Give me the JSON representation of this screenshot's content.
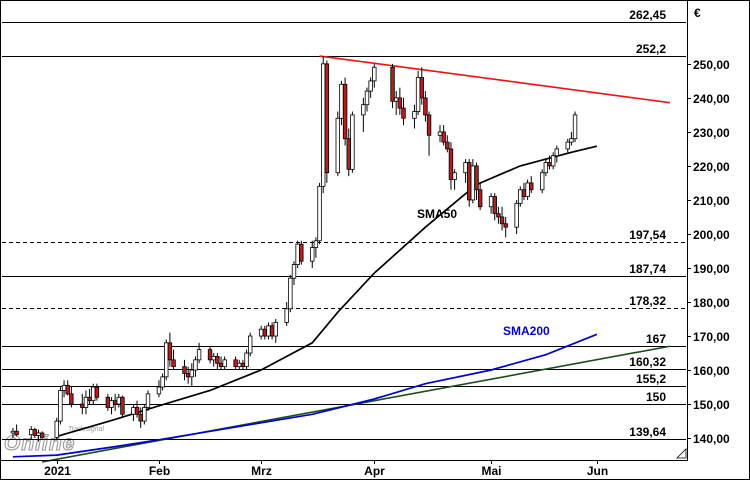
{
  "chart_data": {
    "type": "candlestick",
    "currency_label": "€",
    "watermark": {
      "brand": "Tradesignal",
      "product": "Online"
    },
    "x_axis": {
      "tick_labels": [
        "2021",
        "Feb",
        "Mrz",
        "Apr",
        "Mai",
        "Jun"
      ],
      "tick_dates": [
        "2021-01-04",
        "2021-02-01",
        "2021-03-01",
        "2021-04-01",
        "2021-05-03",
        "2021-06-01"
      ]
    },
    "y_axis": {
      "ylim": [
        133.5,
        265.5
      ],
      "tick_labels": [
        "140,00",
        "150,00",
        "160,00",
        "170,00",
        "180,00",
        "190,00",
        "200,00",
        "210,00",
        "220,00",
        "230,00",
        "240,00",
        "250,00"
      ],
      "ticks": [
        140,
        150,
        160,
        170,
        180,
        190,
        200,
        210,
        220,
        230,
        240,
        250
      ]
    },
    "levels": [
      {
        "label": "262,45",
        "value": 262.45,
        "style": "solid"
      },
      {
        "label": "252,2",
        "value": 252.2,
        "style": "solid"
      },
      {
        "label": "197,54",
        "value": 197.54,
        "style": "dashed"
      },
      {
        "label": "187,74",
        "value": 187.74,
        "style": "solid"
      },
      {
        "label": "178,32",
        "value": 178.32,
        "style": "dashed"
      },
      {
        "label": "167",
        "value": 167,
        "style": "solid"
      },
      {
        "label": "160,32",
        "value": 160.32,
        "style": "solid"
      },
      {
        "label": "155,2",
        "value": 155.2,
        "style": "solid"
      },
      {
        "label": "150",
        "value": 150,
        "style": "solid"
      },
      {
        "label": "139,64",
        "value": 139.64,
        "style": "solid"
      }
    ],
    "indicators": [
      {
        "name": "SMA50",
        "color": "#000000",
        "points": [
          [
            "2021-01-04",
            140.5
          ],
          [
            "2021-01-20",
            145.5
          ],
          [
            "2021-02-01",
            149.5
          ],
          [
            "2021-02-15",
            154
          ],
          [
            "2021-03-01",
            160
          ],
          [
            "2021-03-15",
            168
          ],
          [
            "2021-03-22",
            177
          ],
          [
            "2021-04-01",
            188.5
          ],
          [
            "2021-04-15",
            202
          ],
          [
            "2021-04-29",
            214.5
          ],
          [
            "2021-05-11",
            220
          ],
          [
            "2021-05-25",
            224
          ],
          [
            "2021-06-01",
            225.8
          ]
        ]
      },
      {
        "name": "SMA200",
        "color": "#0000cc",
        "points": [
          [
            "2020-12-23",
            134.5
          ],
          [
            "2021-01-04",
            135
          ],
          [
            "2021-01-20",
            137.5
          ],
          [
            "2021-02-01",
            139.5
          ],
          [
            "2021-02-15",
            142
          ],
          [
            "2021-03-01",
            144.5
          ],
          [
            "2021-03-15",
            147
          ],
          [
            "2021-04-01",
            151.5
          ],
          [
            "2021-04-15",
            156
          ],
          [
            "2021-05-03",
            160
          ],
          [
            "2021-05-18",
            164.5
          ],
          [
            "2021-06-01",
            170.5
          ]
        ]
      }
    ],
    "trendlines": [
      {
        "name": "resistance",
        "color": "#ee1111",
        "points": [
          [
            "2021-03-17",
            252.3
          ],
          [
            "2021-06-21",
            238.6
          ]
        ]
      },
      {
        "name": "support",
        "color": "#1a4d1a",
        "points": [
          [
            "2020-12-31",
            133
          ],
          [
            "2021-06-21",
            167
          ]
        ]
      }
    ],
    "candles": [
      [
        "2020-12-23",
        141.5,
        143,
        140,
        142
      ],
      [
        "2020-12-24",
        142,
        144,
        140.5,
        141
      ],
      [
        "2020-12-28",
        141,
        143.5,
        139.5,
        142.5
      ],
      [
        "2020-12-29",
        142.5,
        143,
        140,
        140.8
      ],
      [
        "2020-12-30",
        140.8,
        142.5,
        139,
        141.5
      ],
      [
        "2020-12-31",
        141.5,
        142,
        139.5,
        140.2
      ],
      [
        "2021-01-04",
        140.2,
        146,
        139.5,
        145
      ],
      [
        "2021-01-05",
        145,
        155,
        144,
        154
      ],
      [
        "2021-01-06",
        154,
        157,
        152,
        155.5
      ],
      [
        "2021-01-07",
        155.5,
        157,
        152.5,
        153
      ],
      [
        "2021-01-08",
        153,
        155,
        149,
        150
      ],
      [
        "2021-01-11",
        150,
        153,
        147,
        149
      ],
      [
        "2021-01-12",
        149,
        154,
        147,
        152
      ],
      [
        "2021-01-13",
        152,
        154.5,
        150,
        151
      ],
      [
        "2021-01-14",
        151,
        156,
        150,
        155
      ],
      [
        "2021-01-15",
        155,
        156,
        151,
        152
      ],
      [
        "2021-01-18",
        152,
        153,
        148,
        149
      ],
      [
        "2021-01-19",
        149,
        152,
        147,
        151
      ],
      [
        "2021-01-20",
        151,
        153,
        148,
        150
      ],
      [
        "2021-01-21",
        150,
        153,
        149,
        152
      ],
      [
        "2021-01-22",
        152,
        152.5,
        146,
        147
      ],
      [
        "2021-01-25",
        147,
        150,
        145,
        149
      ],
      [
        "2021-01-26",
        149,
        151,
        146,
        147
      ],
      [
        "2021-01-27",
        147,
        149,
        143,
        145
      ],
      [
        "2021-01-28",
        145,
        150,
        144,
        149
      ],
      [
        "2021-01-29",
        149,
        154,
        148,
        153
      ],
      [
        "2021-02-01",
        153,
        157,
        152,
        155
      ],
      [
        "2021-02-02",
        155,
        159,
        154,
        158
      ],
      [
        "2021-02-03",
        158,
        169,
        157,
        168
      ],
      [
        "2021-02-04",
        168,
        171,
        161,
        163
      ],
      [
        "2021-02-05",
        163,
        166,
        160,
        161
      ],
      [
        "2021-02-08",
        161,
        163,
        157,
        159
      ],
      [
        "2021-02-09",
        159,
        161,
        156,
        158
      ],
      [
        "2021-02-10",
        158,
        162,
        155,
        160
      ],
      [
        "2021-02-11",
        160,
        164,
        158,
        163
      ],
      [
        "2021-02-12",
        163,
        168,
        162,
        166
      ],
      [
        "2021-02-15",
        166,
        167,
        162,
        163
      ],
      [
        "2021-02-16",
        163,
        165,
        161,
        164
      ],
      [
        "2021-02-17",
        164,
        165,
        160,
        162
      ],
      [
        "2021-02-18",
        162,
        164,
        160,
        161
      ],
      [
        "2021-02-19",
        161,
        164,
        160,
        163
      ],
      [
        "2021-02-22",
        163,
        164,
        160,
        161
      ],
      [
        "2021-02-23",
        161,
        163,
        160,
        162
      ],
      [
        "2021-02-24",
        162,
        163,
        160,
        161
      ],
      [
        "2021-02-25",
        161,
        166,
        160,
        165
      ],
      [
        "2021-02-26",
        165,
        171,
        164,
        170
      ],
      [
        "2021-03-01",
        170,
        173,
        169,
        172
      ],
      [
        "2021-03-02",
        172,
        173,
        169,
        170
      ],
      [
        "2021-03-03",
        170,
        174,
        169,
        173
      ],
      [
        "2021-03-04",
        173,
        174,
        169,
        170
      ],
      [
        "2021-03-05",
        170,
        175,
        168,
        174
      ],
      [
        "2021-03-08",
        174,
        180,
        173,
        178
      ],
      [
        "2021-03-09",
        178,
        188,
        177,
        187
      ],
      [
        "2021-03-10",
        187,
        192,
        185,
        191
      ],
      [
        "2021-03-11",
        191,
        198,
        190,
        197
      ],
      [
        "2021-03-12",
        197,
        198,
        191,
        192
      ],
      [
        "2021-03-15",
        192,
        198,
        190,
        196
      ],
      [
        "2021-03-16",
        196,
        199,
        193,
        198
      ],
      [
        "2021-03-17",
        198,
        215,
        197,
        214
      ],
      [
        "2021-03-18",
        214,
        252.3,
        212,
        250
      ],
      [
        "2021-03-19",
        250,
        251,
        215,
        218
      ],
      [
        "2021-03-22",
        218,
        236,
        217,
        234
      ],
      [
        "2021-03-23",
        234,
        245,
        232,
        244
      ],
      [
        "2021-03-24",
        244,
        246,
        226,
        228
      ],
      [
        "2021-03-25",
        228,
        231,
        217,
        219
      ],
      [
        "2021-03-26",
        219,
        236,
        218,
        235
      ],
      [
        "2021-03-29",
        235,
        240,
        230,
        238
      ],
      [
        "2021-03-30",
        238,
        243,
        236,
        242
      ],
      [
        "2021-03-31",
        242,
        246,
        240,
        245
      ],
      [
        "2021-04-01",
        245,
        250,
        243,
        249
      ],
      [
        "2021-04-06",
        249,
        250,
        237,
        239
      ],
      [
        "2021-04-07",
        239,
        242,
        235,
        240
      ],
      [
        "2021-04-08",
        240,
        243,
        235,
        237
      ],
      [
        "2021-04-09",
        237,
        240,
        232,
        234
      ],
      [
        "2021-04-12",
        234,
        238,
        231,
        236
      ],
      [
        "2021-04-13",
        236,
        248,
        235,
        246
      ],
      [
        "2021-04-14",
        246,
        249,
        238,
        240
      ],
      [
        "2021-04-15",
        240,
        242,
        233,
        235
      ],
      [
        "2021-04-16",
        235,
        236,
        223,
        229
      ],
      [
        "2021-04-19",
        229,
        232,
        227,
        230
      ],
      [
        "2021-04-20",
        230,
        232,
        226,
        227
      ],
      [
        "2021-04-21",
        227,
        229,
        224,
        225
      ],
      [
        "2021-04-22",
        225,
        227,
        213,
        216
      ],
      [
        "2021-04-23",
        216,
        219,
        213,
        218
      ],
      [
        "2021-04-26",
        218,
        222,
        215,
        221
      ],
      [
        "2021-04-27",
        221,
        222,
        208,
        210
      ],
      [
        "2021-04-28",
        210,
        222,
        209,
        220
      ],
      [
        "2021-04-29",
        220,
        221,
        210,
        213
      ],
      [
        "2021-04-30",
        213,
        215,
        207,
        208
      ],
      [
        "2021-05-03",
        208,
        212,
        206,
        211
      ],
      [
        "2021-05-04",
        211,
        212,
        204,
        206
      ],
      [
        "2021-05-05",
        206,
        208,
        203,
        205
      ],
      [
        "2021-05-06",
        205,
        208,
        201,
        203
      ],
      [
        "2021-05-07",
        203,
        205,
        199,
        202
      ],
      [
        "2021-05-10",
        202,
        210,
        200,
        209
      ],
      [
        "2021-05-11",
        209,
        214,
        208,
        213
      ],
      [
        "2021-05-12",
        213,
        215,
        210,
        211
      ],
      [
        "2021-05-13",
        211,
        216,
        210,
        215
      ],
      [
        "2021-05-14",
        215,
        217,
        212,
        213
      ],
      [
        "2021-05-17",
        213,
        219,
        212,
        218
      ],
      [
        "2021-05-18",
        218,
        222,
        217,
        221
      ],
      [
        "2021-05-19",
        221,
        223,
        219,
        220
      ],
      [
        "2021-05-20",
        220,
        224,
        219,
        223
      ],
      [
        "2021-05-21",
        223,
        226,
        221,
        225
      ],
      [
        "2021-05-24",
        225,
        228,
        224,
        227
      ],
      [
        "2021-05-25",
        227,
        230,
        226,
        228
      ],
      [
        "2021-05-26",
        228,
        236,
        227,
        235
      ]
    ]
  }
}
